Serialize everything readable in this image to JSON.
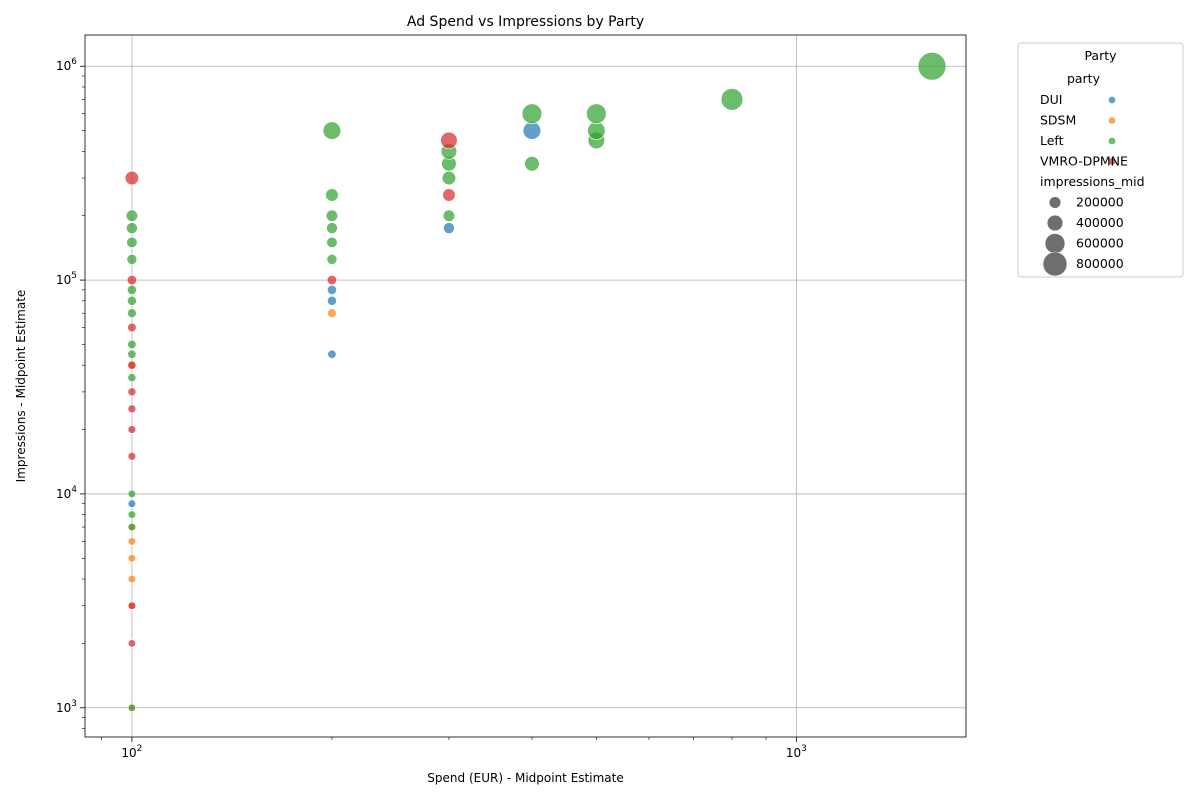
{
  "chart_data": {
    "type": "scatter",
    "title": "Ad Spend vs Impressions by Party",
    "xlabel": "Spend (EUR) - Midpoint Estimate",
    "ylabel": "Impressions - Midpoint Estimate",
    "xscale": "log",
    "yscale": "log",
    "xlim": [
      85,
      1800
    ],
    "ylim": [
      730,
      1400000
    ],
    "grid": true,
    "x_ticks": [
      {
        "value": 100,
        "base": "10",
        "exp": "2"
      },
      {
        "value": 1000,
        "base": "10",
        "exp": "3"
      }
    ],
    "y_ticks": [
      {
        "value": 1000,
        "base": "10",
        "exp": "3"
      },
      {
        "value": 10000,
        "base": "10",
        "exp": "4"
      },
      {
        "value": 100000,
        "base": "10",
        "exp": "5"
      },
      {
        "value": 1000000,
        "base": "10",
        "exp": "6"
      }
    ],
    "legend": {
      "title": "Party",
      "placement": "outside-right",
      "hue_title": "party",
      "size_title": "impressions_mid",
      "size_entries": [
        "200000",
        "400000",
        "600000",
        "800000"
      ]
    },
    "series": [
      {
        "name": "DUI",
        "color": "#1f77b4",
        "points": [
          [
            100,
            9000
          ],
          [
            200,
            45000
          ],
          [
            200,
            80000
          ],
          [
            200,
            90000
          ],
          [
            300,
            175000
          ],
          [
            400,
            500000
          ]
        ]
      },
      {
        "name": "SDSM",
        "color": "#ff7f0e",
        "points": [
          [
            100,
            1000
          ],
          [
            100,
            3000
          ],
          [
            100,
            4000
          ],
          [
            100,
            5000
          ],
          [
            100,
            6000
          ],
          [
            100,
            7000
          ],
          [
            100,
            40000
          ],
          [
            200,
            70000
          ]
        ]
      },
      {
        "name": "Left",
        "color": "#2ca02c",
        "points": [
          [
            100,
            1000
          ],
          [
            100,
            7000
          ],
          [
            100,
            8000
          ],
          [
            100,
            10000
          ],
          [
            100,
            35000
          ],
          [
            100,
            45000
          ],
          [
            100,
            50000
          ],
          [
            100,
            70000
          ],
          [
            100,
            80000
          ],
          [
            100,
            90000
          ],
          [
            100,
            125000
          ],
          [
            100,
            150000
          ],
          [
            100,
            175000
          ],
          [
            100,
            200000
          ],
          [
            200,
            125000
          ],
          [
            200,
            150000
          ],
          [
            200,
            175000
          ],
          [
            200,
            200000
          ],
          [
            200,
            250000
          ],
          [
            200,
            500000
          ],
          [
            300,
            200000
          ],
          [
            300,
            300000
          ],
          [
            300,
            350000
          ],
          [
            300,
            400000
          ],
          [
            400,
            350000
          ],
          [
            400,
            600000
          ],
          [
            500,
            450000
          ],
          [
            500,
            500000
          ],
          [
            500,
            600000
          ],
          [
            800,
            700000
          ],
          [
            1600,
            1000000
          ]
        ]
      },
      {
        "name": "VMRO-DPMNE",
        "color": "#d62728",
        "points": [
          [
            100,
            2000
          ],
          [
            100,
            3000
          ],
          [
            100,
            15000
          ],
          [
            100,
            20000
          ],
          [
            100,
            25000
          ],
          [
            100,
            30000
          ],
          [
            100,
            40000
          ],
          [
            100,
            60000
          ],
          [
            100,
            100000
          ],
          [
            100,
            300000
          ],
          [
            200,
            100000
          ],
          [
            300,
            250000
          ],
          [
            300,
            450000
          ]
        ]
      }
    ]
  }
}
